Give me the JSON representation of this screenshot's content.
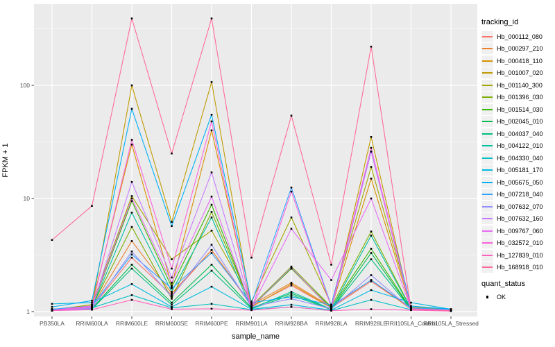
{
  "figure": {
    "background": "#FFFFFF",
    "panel_bg": "#EBEBEB",
    "grid_color": "#FFFFFF",
    "tick_color": "#333333",
    "tick_label_color": "#4D4D4D",
    "point_color": "#000000"
  },
  "chart_data": {
    "type": "line",
    "title": "",
    "xlabel": "sample_name",
    "ylabel": "FPKM + 1",
    "y_scale": "log10",
    "y_ticks": [
      1,
      10,
      100
    ],
    "ylim": [
      0.9,
      520
    ],
    "grid": "on",
    "legend_position": "right",
    "categories": [
      "PB350LA",
      "RRIM600LA",
      "RRIM600LE",
      "RRIM600SE",
      "RRIM600PE",
      "RRIM901LA",
      "RRIM928BA",
      "RRIM928LA",
      "RRIM928LE",
      "RRII105LA_Control",
      "RRII105LA_Stressed"
    ],
    "series": [
      {
        "name": "Hb_000112_080",
        "color": "#F8766D",
        "values": [
          1.04,
          1.08,
          3.0,
          1.4,
          3.5,
          1.12,
          1.7,
          1.08,
          1.85,
          1.06,
          1.03
        ]
      },
      {
        "name": "Hb_000297_210",
        "color": "#EA8331",
        "values": [
          1.03,
          1.1,
          4.2,
          1.45,
          3.5,
          1.15,
          1.8,
          1.1,
          1.9,
          1.05,
          1.02
        ]
      },
      {
        "name": "Hb_000418_110",
        "color": "#D89000",
        "values": [
          1.03,
          1.15,
          30,
          1.7,
          40,
          1.1,
          1.75,
          1.08,
          15,
          1.08,
          1.03
        ]
      },
      {
        "name": "Hb_001007_020",
        "color": "#C09B00",
        "values": [
          1.05,
          1.1,
          100,
          6.2,
          107,
          1.1,
          2.4,
          1.05,
          35,
          1.05,
          1.02
        ]
      },
      {
        "name": "Hb_001140_300",
        "color": "#A3A500",
        "values": [
          1.04,
          1.15,
          10.5,
          2.9,
          5.2,
          1.23,
          6.8,
          1.15,
          19,
          1.1,
          1.04
        ]
      },
      {
        "name": "Hb_001396_030",
        "color": "#7CAE00",
        "values": [
          1.02,
          1.1,
          5.6,
          1.3,
          7.6,
          1.12,
          2.5,
          1.1,
          5.1,
          1.06,
          1.03
        ]
      },
      {
        "name": "Hb_001514_030",
        "color": "#39B600",
        "values": [
          1.02,
          1.1,
          9.5,
          1.65,
          8.8,
          1.1,
          2.4,
          1.08,
          3.6,
          1.05,
          1.02
        ]
      },
      {
        "name": "Hb_002045_010",
        "color": "#00BB4E",
        "values": [
          1.02,
          1.06,
          2.6,
          1.2,
          2.6,
          1.08,
          1.45,
          1.05,
          3.3,
          1.04,
          1.02
        ]
      },
      {
        "name": "Hb_004037_040",
        "color": "#00BF7D",
        "values": [
          1.02,
          1.05,
          2.4,
          1.15,
          2.3,
          1.06,
          1.4,
          1.04,
          2.9,
          1.04,
          1.02
        ]
      },
      {
        "name": "Hb_004122_010",
        "color": "#00C1A3",
        "values": [
          1.03,
          1.08,
          7.5,
          1.5,
          6.8,
          1.06,
          1.5,
          1.05,
          4.7,
          1.05,
          1.02
        ]
      },
      {
        "name": "Hb_004330_040",
        "color": "#00BFC4",
        "values": [
          1.05,
          1.08,
          1.4,
          1.08,
          1.17,
          1.04,
          1.1,
          1.02,
          1.27,
          1.04,
          1.02
        ]
      },
      {
        "name": "Hb_005181_170",
        "color": "#00BAE0",
        "values": [
          1.17,
          1.2,
          1.75,
          1.1,
          1.66,
          1.05,
          1.15,
          1.03,
          1.55,
          1.2,
          1.05
        ]
      },
      {
        "name": "Hb_005675_050",
        "color": "#00B0F6",
        "values": [
          1.1,
          1.25,
          62,
          5.7,
          55,
          1.2,
          1.35,
          1.15,
          26,
          1.12,
          1.05
        ]
      },
      {
        "name": "Hb_007218_040",
        "color": "#35A2FF",
        "values": [
          1.05,
          1.12,
          3.2,
          1.6,
          3.3,
          1.18,
          12.5,
          1.12,
          1.9,
          1.08,
          1.04
        ]
      },
      {
        "name": "Hb_007632_070",
        "color": "#9590FF",
        "values": [
          1.02,
          1.06,
          3.4,
          1.35,
          3.9,
          1.1,
          1.3,
          1.06,
          2.1,
          1.05,
          1.02
        ]
      },
      {
        "name": "Hb_007632_160",
        "color": "#C77CFF",
        "values": [
          1.02,
          1.08,
          14,
          2.0,
          17,
          1.1,
          2.45,
          1.05,
          26,
          1.04,
          1.02
        ]
      },
      {
        "name": "Hb_009767_060",
        "color": "#E76BF3",
        "values": [
          1.03,
          1.12,
          10,
          1.8,
          10.4,
          1.08,
          5.4,
          1.9,
          10,
          1.06,
          1.03
        ]
      },
      {
        "name": "Hb_032572_010",
        "color": "#FA62DB",
        "values": [
          1.02,
          1.1,
          33,
          2.4,
          48,
          1.05,
          11.5,
          1.1,
          28,
          1.05,
          1.02
        ]
      },
      {
        "name": "Hb_127839_010",
        "color": "#FF62BC",
        "values": [
          1.02,
          1.04,
          1.27,
          1.05,
          1.06,
          1.03,
          1.1,
          1.02,
          1.05,
          1.03,
          1.01
        ]
      },
      {
        "name": "Hb_168918_010",
        "color": "#FF6A98",
        "values": [
          4.3,
          8.6,
          390,
          25,
          390,
          3.0,
          54,
          2.6,
          220,
          1.05,
          1.02
        ]
      }
    ],
    "legend": {
      "color_title": "tracking_id",
      "shape_title": "quant_status",
      "shape_items": [
        "OK"
      ]
    }
  }
}
